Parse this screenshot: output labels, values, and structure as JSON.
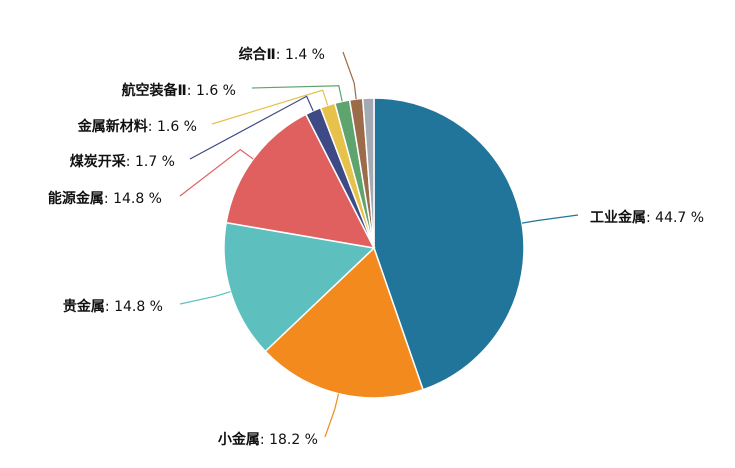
{
  "chart_data": {
    "type": "pie",
    "categories": [
      "工业金属",
      "小金属",
      "贵金属",
      "能源金属",
      "煤炭开采",
      "金属新材料",
      "航空装备Ⅱ",
      "综合Ⅱ",
      null
    ],
    "values": [
      44.7,
      18.2,
      14.8,
      14.8,
      1.7,
      1.6,
      1.6,
      1.4,
      1.2
    ],
    "value_labels": [
      "44.7 %",
      "18.2 %",
      "14.8 %",
      "14.8 %",
      "1.7 %",
      "1.6 %",
      "1.6 %",
      "1.4 %",
      null
    ],
    "label_separator": ": ",
    "colors": [
      "#21759b",
      "#f28a1e",
      "#5ebfbf",
      "#e06060",
      "#3e4a85",
      "#e6c14b",
      "#5fa36e",
      "#9b6b4a",
      "#a3aab3"
    ]
  }
}
